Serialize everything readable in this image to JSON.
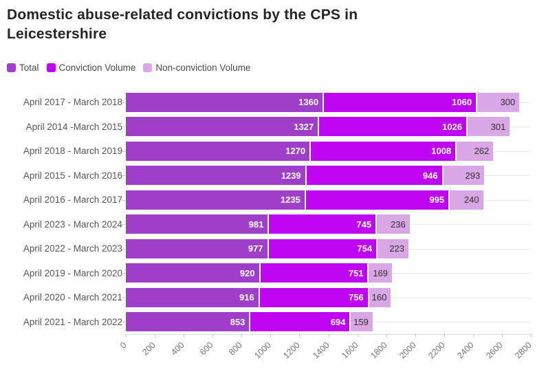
{
  "title": "Domestic abuse-related convictions by the CPS in Leicestershire",
  "chart_data": {
    "type": "bar",
    "orientation": "horizontal",
    "stacked": true,
    "title": "Domestic abuse-related convictions by the CPS in Leicestershire",
    "legend_position": "top",
    "grid": "row-guides",
    "xlim": [
      0,
      2800
    ],
    "x_tick_labels": [
      "0",
      "200",
      "400",
      "600",
      "800",
      "1000",
      "1200",
      "1400",
      "1600",
      "1800",
      "2000",
      "2200",
      "2400",
      "2600",
      "2800"
    ],
    "categories": [
      "April 2017 - March 2018",
      "April 2014 -March 2015",
      "April 2018 - March 2019",
      "April 2015 - March 2016",
      "April 2016 - March 2017",
      "April 2023 - March 2024",
      "April 2022 - March 2023",
      "April 2019 - March 2020",
      "April 2020 - March 2021",
      "April 2021 - March 2022"
    ],
    "series": [
      {
        "name": "Total",
        "color": "#9f3fc9",
        "label_color": "#ffffff",
        "label_bold": true,
        "values": [
          1360,
          1327,
          1270,
          1239,
          1235,
          981,
          977,
          920,
          916,
          853
        ]
      },
      {
        "name": "Conviction Volume",
        "color": "#bf06f2",
        "label_color": "#ffffff",
        "label_bold": true,
        "values": [
          1060,
          1026,
          1008,
          946,
          995,
          745,
          754,
          751,
          756,
          694
        ]
      },
      {
        "name": "Non-conviction Volume",
        "color": "#d9a7e6",
        "label_color": "#2e2e2e",
        "label_bold": false,
        "values": [
          300,
          301,
          262,
          293,
          240,
          236,
          223,
          169,
          160,
          159
        ]
      }
    ]
  },
  "style_colors": {
    "title": "#252525",
    "category_label": "#575757",
    "axis_label": "#757575",
    "guide_line": "#e9e9e9",
    "axis_line": "#dedede"
  }
}
